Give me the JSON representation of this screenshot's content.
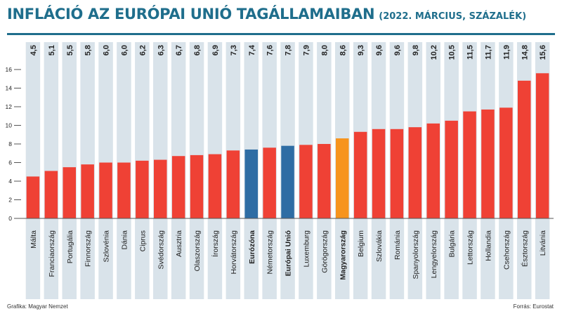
{
  "header": {
    "title": "INFLÁCIÓ AZ EURÓPAI UNIÓ TAGÁLLAMAIBAN",
    "subtitle": "(2022. MÁRCIUS, SZÁZALÉK)"
  },
  "footer": {
    "credit": "Grafika: Magyar Nemzet",
    "source": "Forrás: Eurostat"
  },
  "colors": {
    "default": "#ef4135",
    "eu_aggregate": "#2e6da4",
    "hungary": "#f7941d",
    "column_band": "#d9e3ea",
    "title": "#1f6e8c"
  },
  "chart_data": {
    "type": "bar",
    "title": "INFLÁCIÓ AZ EURÓPAI UNIÓ TAGÁLLAMAIBAN",
    "subtitle": "(2022. MÁRCIUS, SZÁZALÉK)",
    "ylim": [
      0,
      16
    ],
    "yticks": [
      0,
      2,
      4,
      6,
      8,
      10,
      12,
      14,
      16
    ],
    "grid": false,
    "categories": [
      "Málta",
      "Franciaország",
      "Portugália",
      "Finnország",
      "Szlovénia",
      "Dánia",
      "Ciprus",
      "Svédország",
      "Ausztria",
      "Olaszország",
      "Írország",
      "Horvátország",
      "Eurózóna",
      "Németország",
      "Európai Unió",
      "Luxemburg",
      "Görögország",
      "Magyarország",
      "Belgium",
      "Szlovákia",
      "Románia",
      "Spanyolország",
      "Lengyelország",
      "Bulgária",
      "Lettország",
      "Hollandia",
      "Csehország",
      "Észtország",
      "Litvánia"
    ],
    "values": [
      4.5,
      5.1,
      5.5,
      5.8,
      6.0,
      6.0,
      6.2,
      6.3,
      6.7,
      6.8,
      6.9,
      7.3,
      7.4,
      7.6,
      7.8,
      7.9,
      8.0,
      8.6,
      9.3,
      9.6,
      9.6,
      9.8,
      10.2,
      10.5,
      11.5,
      11.7,
      11.9,
      14.8,
      15.6
    ],
    "value_labels": [
      "4,5",
      "5,1",
      "5,5",
      "5,8",
      "6,0",
      "6,0",
      "6,2",
      "6,3",
      "6,7",
      "6,8",
      "6,9",
      "7,3",
      "7,4",
      "7,6",
      "7,8",
      "7,9",
      "8,0",
      "8,6",
      "9,3",
      "9,6",
      "9,6",
      "9,8",
      "10,2",
      "10,5",
      "11,5",
      "11,7",
      "11,9",
      "14,8",
      "15,6"
    ],
    "highlight": {
      "Eurózóna": "eu_aggregate",
      "Európai Unió": "eu_aggregate",
      "Magyarország": "hungary"
    },
    "bold_labels": [
      "Eurózóna",
      "Európai Unió",
      "Magyarország"
    ]
  }
}
